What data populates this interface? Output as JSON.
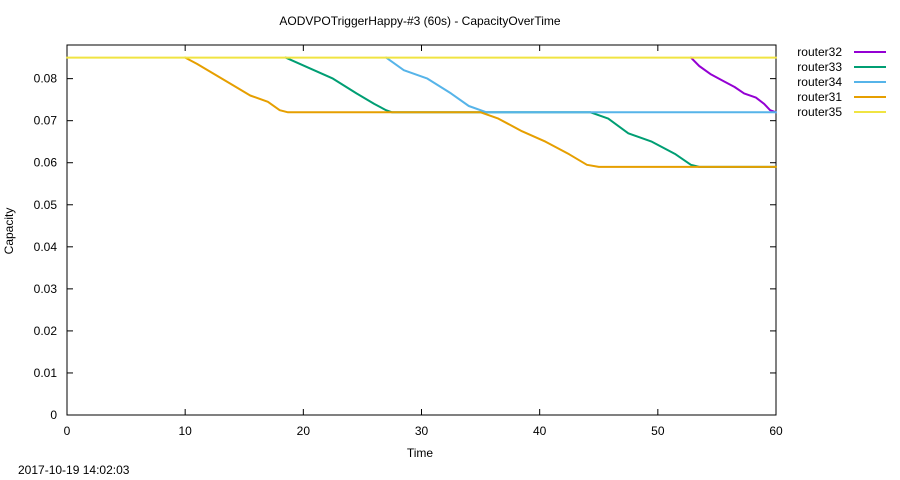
{
  "chart_data": {
    "type": "line",
    "title": "AODVPOTriggerHappy-#3 (60s) - CapacityOverTime",
    "xlabel": "Time",
    "ylabel": "Capacity",
    "xlim": [
      0,
      60
    ],
    "ylim": [
      0,
      0.088
    ],
    "xticks": [
      "0",
      "10",
      "20",
      "30",
      "40",
      "50",
      "60"
    ],
    "yticks": [
      "0",
      "0.01",
      "0.02",
      "0.03",
      "0.04",
      "0.05",
      "0.06",
      "0.07",
      "0.08"
    ],
    "grid": false,
    "legend_position": "outside-right",
    "timestamp": "2017-10-19 14:02:03",
    "series": [
      {
        "name": "router32",
        "color": "#9400D3",
        "points": [
          [
            52.8,
            0.085
          ],
          [
            53.5,
            0.083
          ],
          [
            54.5,
            0.081
          ],
          [
            55.5,
            0.0795
          ],
          [
            56.5,
            0.078
          ],
          [
            57.3,
            0.0765
          ],
          [
            58.3,
            0.0755
          ],
          [
            59.0,
            0.074
          ],
          [
            59.5,
            0.0725
          ],
          [
            60.0,
            0.072
          ]
        ]
      },
      {
        "name": "router33",
        "color": "#009E73",
        "points": [
          [
            18.5,
            0.085
          ],
          [
            20.5,
            0.0825
          ],
          [
            22.5,
            0.08
          ],
          [
            24.5,
            0.0765
          ],
          [
            26.0,
            0.074
          ],
          [
            27.0,
            0.0725
          ],
          [
            27.5,
            0.072
          ],
          [
            44.3,
            0.072
          ],
          [
            45.8,
            0.0705
          ],
          [
            47.5,
            0.067
          ],
          [
            49.5,
            0.065
          ],
          [
            51.5,
            0.062
          ],
          [
            52.8,
            0.0595
          ],
          [
            53.5,
            0.059
          ],
          [
            60.0,
            0.059
          ]
        ]
      },
      {
        "name": "router34",
        "color": "#56B4E9",
        "points": [
          [
            27.0,
            0.085
          ],
          [
            28.5,
            0.082
          ],
          [
            30.5,
            0.08
          ],
          [
            32.5,
            0.0765
          ],
          [
            34.0,
            0.0735
          ],
          [
            35.5,
            0.072
          ],
          [
            60.0,
            0.072
          ]
        ]
      },
      {
        "name": "router31",
        "color": "#E69F00",
        "points": [
          [
            10.0,
            0.085
          ],
          [
            11.0,
            0.0835
          ],
          [
            12.5,
            0.081
          ],
          [
            14.0,
            0.0785
          ],
          [
            15.5,
            0.076
          ],
          [
            17.0,
            0.0745
          ],
          [
            18.0,
            0.0725
          ],
          [
            18.7,
            0.072
          ],
          [
            35.0,
            0.072
          ],
          [
            36.5,
            0.0705
          ],
          [
            38.5,
            0.0675
          ],
          [
            40.5,
            0.065
          ],
          [
            42.5,
            0.062
          ],
          [
            44.0,
            0.0595
          ],
          [
            45.0,
            0.059
          ],
          [
            60.0,
            0.059
          ]
        ]
      },
      {
        "name": "router35",
        "color": "#F0E442",
        "points": [
          [
            0,
            0.085
          ],
          [
            60,
            0.085
          ]
        ]
      }
    ]
  }
}
